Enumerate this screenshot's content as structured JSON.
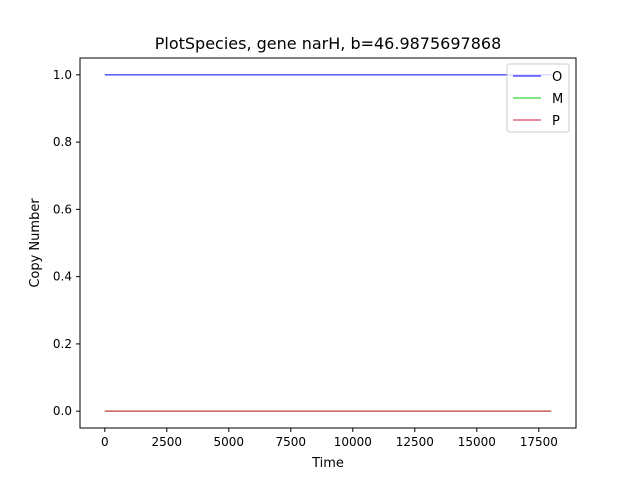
{
  "chart_data": {
    "type": "line",
    "title": "PlotSpecies, gene narH, b=46.9875697868",
    "xlabel": "Time",
    "ylabel": "Copy Number",
    "xlim": [
      -1000,
      19000
    ],
    "ylim": [
      -0.05,
      1.05
    ],
    "xticks": [
      0,
      2500,
      5000,
      7500,
      10000,
      12500,
      15000,
      17500
    ],
    "xtick_labels": [
      "0",
      "2500",
      "5000",
      "7500",
      "10000",
      "12500",
      "15000",
      "17500"
    ],
    "yticks": [
      0.0,
      0.2,
      0.4,
      0.6,
      0.8,
      1.0
    ],
    "ytick_labels": [
      "0.0",
      "0.2",
      "0.4",
      "0.6",
      "0.8",
      "1.0"
    ],
    "grid": false,
    "legend_position": "top-right",
    "series": [
      {
        "name": "O",
        "color": "#0000ff",
        "x": [
          0,
          18000
        ],
        "y": [
          1.0,
          1.0
        ]
      },
      {
        "name": "M",
        "color": "#00cc00",
        "x": [
          0,
          18000
        ],
        "y": [
          0.0,
          0.0
        ]
      },
      {
        "name": "P",
        "color": "#dc143c",
        "x": [
          0,
          18000
        ],
        "y": [
          0.0,
          0.0
        ]
      }
    ]
  }
}
